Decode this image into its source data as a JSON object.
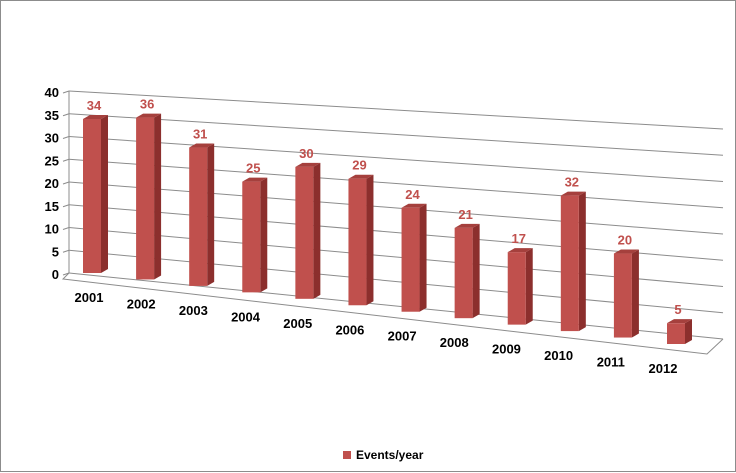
{
  "chart_data": {
    "type": "bar",
    "title": "",
    "xlabel": "",
    "ylabel": "",
    "categories": [
      "2001",
      "2002",
      "2003",
      "2004",
      "2005",
      "2006",
      "2007",
      "2008",
      "2009",
      "2010",
      "2011",
      "2012"
    ],
    "series": [
      {
        "name": "Events/year",
        "values": [
          34,
          36,
          31,
          25,
          30,
          29,
          24,
          21,
          17,
          32,
          20,
          5
        ],
        "color": "#c0504d"
      }
    ],
    "ylim": [
      0,
      40
    ],
    "yticks": [
      0,
      5,
      10,
      15,
      20,
      25,
      30,
      35,
      40
    ],
    "grid": true,
    "legend_position": "bottom",
    "data_labels": true,
    "style": "3d-perspective"
  }
}
